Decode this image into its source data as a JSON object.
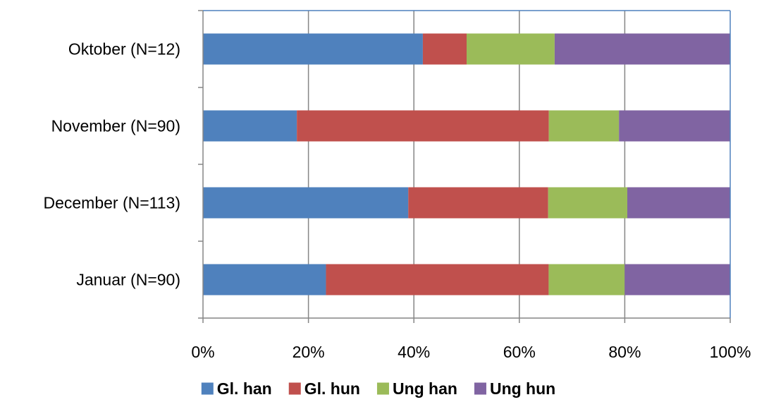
{
  "chart_data": {
    "type": "bar",
    "orientation": "horizontal",
    "stacked": "percent",
    "categories": [
      "Januar (N=90)",
      "December (N=113)",
      "November (N=90)",
      "Oktober (N=12)"
    ],
    "series": [
      {
        "name": "Gl. han",
        "color": "#4F81BD",
        "values": [
          23.3,
          38.9,
          17.8,
          41.7
        ]
      },
      {
        "name": "Gl. hun",
        "color": "#C0504D",
        "values": [
          42.2,
          26.5,
          47.8,
          8.3
        ]
      },
      {
        "name": "Ung han",
        "color": "#9BBB59",
        "values": [
          14.4,
          15.0,
          13.3,
          16.7
        ]
      },
      {
        "name": "Ung hun",
        "color": "#8064A2",
        "values": [
          20.0,
          19.5,
          21.1,
          33.3
        ]
      }
    ],
    "xlim": [
      0,
      100
    ],
    "x_ticks": [
      "0%",
      "20%",
      "40%",
      "60%",
      "80%",
      "100%"
    ],
    "grid": true,
    "legend_position": "bottom"
  }
}
